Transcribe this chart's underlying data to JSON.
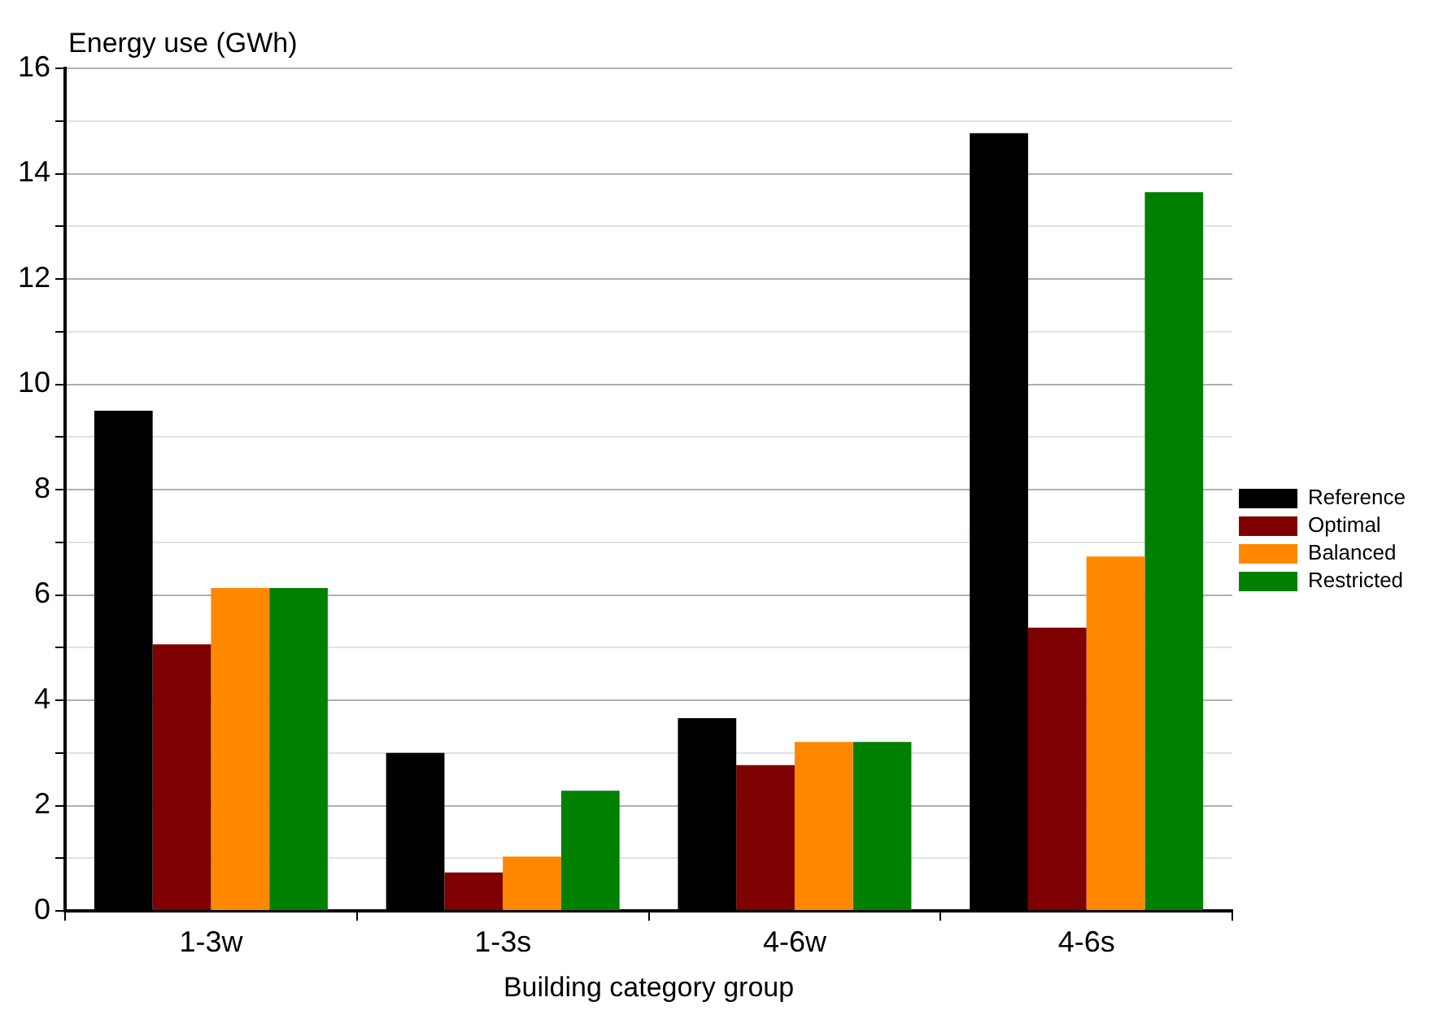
{
  "chart_data": {
    "type": "bar",
    "ylabel": "Energy use (GWh)",
    "xlabel": "Building category group",
    "categories": [
      "1-3w",
      "1-3s",
      "4-6w",
      "4-6s"
    ],
    "series": [
      {
        "name": "Reference",
        "color": "#000000",
        "values": [
          9.5,
          3.0,
          3.66,
          14.77
        ]
      },
      {
        "name": "Optimal",
        "color": "#7f0000",
        "values": [
          5.06,
          0.73,
          2.77,
          5.38
        ]
      },
      {
        "name": "Balanced",
        "color": "#ff8800",
        "values": [
          6.13,
          1.03,
          3.21,
          6.73
        ]
      },
      {
        "name": "Restricted",
        "color": "#008000",
        "values": [
          6.13,
          2.28,
          3.21,
          13.65
        ]
      }
    ],
    "ylim": [
      0,
      16
    ],
    "yticks": [
      0,
      {
        "value": 1,
        "label": null
      },
      2,
      {
        "value": 3,
        "label": null
      },
      4,
      {
        "value": 5,
        "label": null
      },
      6,
      {
        "value": 7,
        "label": null
      },
      8,
      {
        "value": 9,
        "label": null
      },
      10,
      {
        "value": 11,
        "label": null
      },
      12,
      {
        "value": 13,
        "label": null
      },
      14,
      {
        "value": 15,
        "label": null
      },
      16
    ],
    "grid": "y",
    "legend": "right"
  }
}
